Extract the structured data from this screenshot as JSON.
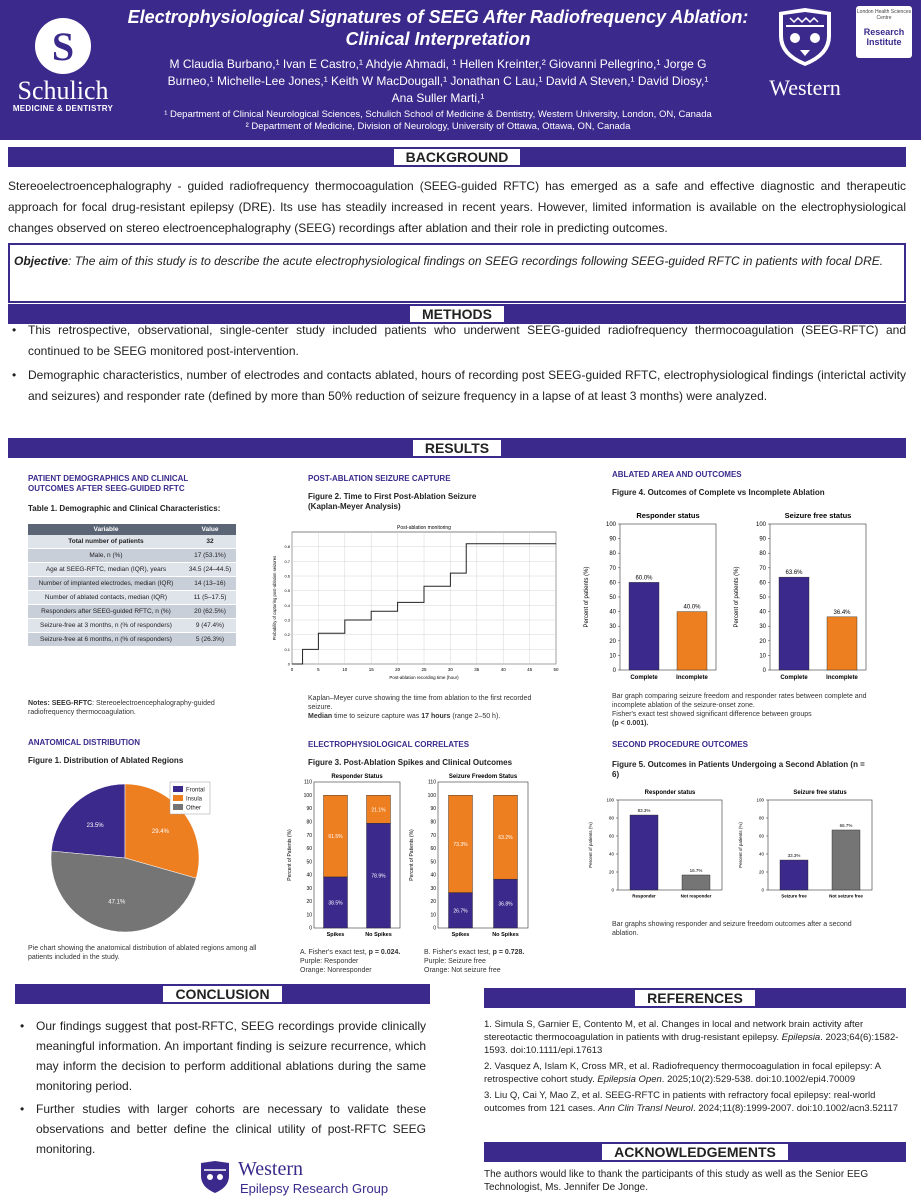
{
  "header": {
    "schulich_logo_letter": "S",
    "schulich_name": "Schulich",
    "schulich_sub": "MEDICINE & DENTISTRY",
    "title_line1": "Electrophysiological Signatures of SEEG After Radiofrequency Ablation:",
    "title_line2": "Clinical Interpretation",
    "authors_line1": "M Claudia Burbano,¹ Ivan E Castro,¹ Ahdyie Ahmadi, ¹ Hellen Kreinter,² Giovanni Pellegrino,¹ Jorge G",
    "authors_line2": "Burneo,¹ Michelle-Lee Jones,¹ Keith W MacDougall,¹ Jonathan C Lau,¹ David A Steven,¹ David Diosy,¹",
    "authors_line3": "Ana Suller Marti,¹",
    "affil1": "¹ Department of Clinical Neurological Sciences, Schulich School of Medicine & Dentistry, Western University, London, ON, Canada",
    "affil2": "² Department of Medicine, Division of Neurology, University of Ottawa, Ottawa, ON, Canada",
    "western_name": "Western",
    "ri_top": "London Health Sciences Centre",
    "ri_main": "Research Institute"
  },
  "background": {
    "heading": "BACKGROUND",
    "text": "Stereoelectroencephalography - guided radiofrequency thermocoagulation (SEEG-guided RFTC) has emerged as a safe and effective diagnostic and therapeutic approach for focal drug-resistant epilepsy (DRE). Its use has steadily increased in recent years. However, limited information is available on the electrophysiological changes observed on stereo electroencephalography (SEEG) recordings after ablation and their role in predicting outcomes.",
    "objective_label": "Objective",
    "objective_text": ": The aim of this study is to describe the acute electrophysiological findings on SEEG recordings following SEEG-guided RFTC in patients with focal DRE."
  },
  "methods": {
    "heading": "METHODS",
    "bullets": [
      "This retrospective, observational, single-center study included patients who underwent SEEG-guided radiofrequency thermocoagulation (SEEG-RFTC) and continued to be SEEG monitored post-intervention.",
      "Demographic characteristics, number of electrodes and contacts ablated, hours of recording post SEEG-guided RFTC, electrophysiological findings (interictal activity and seizures) and responder rate (defined by more than 50% reduction of seizure frequency in a lapse of at least 3 months) were analyzed."
    ]
  },
  "results": {
    "heading": "RESULTS",
    "col1_title": "PATIENT DEMOGRAPHICS AND CLINICAL OUTCOMES AFTER SEEG-GUIDED RFTC",
    "table_title": "Table 1. Demographic and Clinical Characteristics:",
    "table_headers": [
      "Variable",
      "Value"
    ],
    "table_rows": [
      [
        "Total number of patients",
        "32"
      ],
      [
        "Male, n (%)",
        "17 (53.1%)"
      ],
      [
        "Age at SEEG-RFTC, median (IQR), years",
        "34.5 (24–44.5)"
      ],
      [
        "Number of implanted electrodes, median (IQR)",
        "14 (13–16)"
      ],
      [
        "Number of ablated contacts, median (IQR)",
        "11 (5–17.5)"
      ],
      [
        "Responders after SEEG-guided RFTC, n (%)",
        "20 (62.5%)"
      ],
      [
        "Seizure-free at 3 months, n (% of responders)",
        "9 (47.4%)"
      ],
      [
        "Seizure-free at 6 months, n (% of responders)",
        "5 (26.3%)"
      ]
    ],
    "table_note_label": "Notes: SEEG-RFTC",
    "table_note": ": Stereoelectroencephalography-guided radiofrequency thermocoagulation.",
    "anat_title": "ANATOMICAL DISTRIBUTION",
    "fig1_title": "Figure 1. Distribution of Ablated Regions",
    "fig1_caption": "Pie chart showing the anatomical distribution of ablated regions among all patients included in the study.",
    "capture_title": "POST-ABLATION SEIZURE CAPTURE",
    "fig2_title": "Figure 2. Time to First Post-Ablation Seizure (Kaplan-Meyer Analysis)",
    "fig2_caption": "Kaplan–Meyer curve showing the time from ablation to the first recorded seizure.",
    "fig2_median_label": "Median",
    "fig2_median_a": " time to seizure capture was ",
    "fig2_median_val": "17 hours",
    "fig2_median_b": " (range 2–50 h).",
    "electro_title": "ELECTROPHYSIOLOGICAL CORRELATES",
    "fig3_title": "Figure 3. Post-Ablation Spikes and Clinical Outcomes",
    "fig3_note_a1": "A. Fisher's exact test, ",
    "fig3_note_a2": "p = 0.024.",
    "fig3_note_a3": "Purple: Responder",
    "fig3_note_a4": "Orange: Nonresponder",
    "fig3_note_b1": "B. Fisher's exact test, ",
    "fig3_note_b2": "p = 0.728.",
    "fig3_note_b3": "Purple: Seizure free",
    "fig3_note_b4": "Orange: Not seizure free",
    "ablated_title": "ABLATED AREA AND OUTCOMES",
    "fig4_title": "Figure 4. Outcomes of Complete vs Incomplete Ablation",
    "fig4_caption1": "Bar graph comparing seizure freedom and responder rates between complete and incomplete ablation of the seizure-onset zone.",
    "fig4_caption2": "Fisher's exact test showed significant difference between groups",
    "fig4_caption3": "(p < 0.001).",
    "second_title": "SECOND PROCEDURE OUTCOMES",
    "fig5_title": "Figure 5. Outcomes in Patients Undergoing a Second Ablation (n = 6)",
    "fig5_caption": "Bar graphs showing responder and seizure freedom outcomes after a second ablation."
  },
  "chart_data": [
    {
      "id": "fig1",
      "type": "pie",
      "title": "Figure 1. Distribution of Ablated Regions",
      "categories": [
        "Frontal",
        "Insula",
        "Other"
      ],
      "values": [
        23.5,
        29.4,
        47.1
      ],
      "labels": [
        "23.5%",
        "29.4%",
        "47.1%"
      ],
      "colors": [
        "#3b2a8c",
        "#ee7f20",
        "#757575"
      ],
      "legend": "top-right"
    },
    {
      "id": "fig2",
      "type": "line",
      "title": "Post-ablation monitoring",
      "xlabel": "Post-ablation recording time (hour)",
      "ylabel": "Probability of capturing post-ablation seizures",
      "x": [
        0,
        2,
        2,
        5,
        5,
        10,
        10,
        15,
        15,
        20,
        20,
        25,
        25,
        30,
        30,
        33,
        33,
        50
      ],
      "y": [
        0,
        0,
        0.1,
        0.1,
        0.21,
        0.21,
        0.3,
        0.3,
        0.36,
        0.36,
        0.42,
        0.42,
        0.53,
        0.53,
        0.62,
        0.62,
        0.82,
        0.82
      ],
      "xticks": [
        "0",
        "5",
        "10",
        "15",
        "20",
        "25",
        "30",
        "35",
        "40",
        "45",
        "50"
      ],
      "yticks": [
        "0",
        "0.1",
        "0.2",
        "0.3",
        "0.4",
        "0.5",
        "0.6",
        "0.7",
        "0.8"
      ],
      "xlim": [
        0,
        50
      ],
      "ylim": [
        0,
        0.9
      ]
    },
    {
      "id": "fig3a",
      "type": "bar",
      "stacked": true,
      "title": "Responder Status",
      "ylabel": "Percent of Patients (%)",
      "categories": [
        "Spikes",
        "No Spikes"
      ],
      "series": [
        {
          "name": "Responder",
          "values": [
            38.5,
            78.9
          ],
          "labels": [
            "38.5%",
            "78.9%"
          ],
          "color": "#3b2a8c"
        },
        {
          "name": "Nonresponder",
          "values": [
            61.5,
            21.1
          ],
          "labels": [
            "61.5%",
            "21.1%"
          ],
          "color": "#ee7f20"
        }
      ],
      "yticks": [
        "0",
        "10",
        "20",
        "30",
        "40",
        "50",
        "60",
        "70",
        "80",
        "90",
        "100",
        "110"
      ],
      "ylim": [
        0,
        110
      ]
    },
    {
      "id": "fig3b",
      "type": "bar",
      "stacked": true,
      "title": "Seizure Freedom Status",
      "ylabel": "Percent of Patients (%)",
      "categories": [
        "Spikes",
        "No Spikes"
      ],
      "series": [
        {
          "name": "Seizure free",
          "values": [
            26.7,
            36.8
          ],
          "labels": [
            "26.7%",
            "36.8%"
          ],
          "color": "#3b2a8c"
        },
        {
          "name": "Not seizure free",
          "values": [
            73.3,
            63.2
          ],
          "labels": [
            "73.3%",
            "63.2%"
          ],
          "color": "#ee7f20"
        }
      ],
      "yticks": [
        "0",
        "10",
        "20",
        "30",
        "40",
        "50",
        "60",
        "70",
        "80",
        "90",
        "100",
        "110"
      ],
      "ylim": [
        0,
        110
      ]
    },
    {
      "id": "fig4a",
      "type": "bar",
      "title": "Responder status",
      "ylabel": "Percent of patients (%)",
      "categories": [
        "Complete",
        "Incomplete"
      ],
      "values": [
        60.0,
        40.0
      ],
      "labels": [
        "60.0%",
        "40.0%"
      ],
      "colors": [
        "#3b2a8c",
        "#ee7f20"
      ],
      "yticks": [
        "0",
        "10",
        "20",
        "30",
        "40",
        "50",
        "60",
        "70",
        "80",
        "90",
        "100"
      ],
      "ylim": [
        0,
        100
      ]
    },
    {
      "id": "fig4b",
      "type": "bar",
      "title": "Seizure free status",
      "ylabel": "Percent of patients (%)",
      "categories": [
        "Complete",
        "Incomplete"
      ],
      "values": [
        63.6,
        36.4
      ],
      "labels": [
        "63.6%",
        "36.4%"
      ],
      "colors": [
        "#3b2a8c",
        "#ee7f20"
      ],
      "yticks": [
        "0",
        "10",
        "20",
        "30",
        "40",
        "50",
        "60",
        "70",
        "80",
        "90",
        "100"
      ],
      "ylim": [
        0,
        100
      ]
    },
    {
      "id": "fig5a",
      "type": "bar",
      "title": "Responder status",
      "ylabel": "Percent of patients (%)",
      "categories": [
        "Responder",
        "Not responder"
      ],
      "values": [
        83.3,
        16.7
      ],
      "labels": [
        "83.3%",
        "16.7%"
      ],
      "colors": [
        "#3b2a8c",
        "#757575"
      ],
      "yticks": [
        "0",
        "20",
        "40",
        "60",
        "80",
        "100"
      ],
      "ylim": [
        0,
        100
      ]
    },
    {
      "id": "fig5b",
      "type": "bar",
      "title": "Seizure free status",
      "ylabel": "Percent of patients (%)",
      "categories": [
        "Seizure free",
        "Not seizure free"
      ],
      "values": [
        33.3,
        66.7
      ],
      "labels": [
        "33.3%",
        "66.7%"
      ],
      "colors": [
        "#3b2a8c",
        "#757575"
      ],
      "yticks": [
        "0",
        "20",
        "40",
        "60",
        "80",
        "100"
      ],
      "ylim": [
        0,
        100
      ]
    }
  ],
  "conclusion": {
    "heading": "CONCLUSION",
    "bullets": [
      "Our findings suggest that post-RFTC, SEEG recordings provide clinically meaningful information. An important finding is seizure recurrence, which may inform the decision to perform additional ablations during the same monitoring period.",
      "Further studies with larger cohorts are necessary to validate these observations and better define the clinical utility of post-RFTC SEEG monitoring."
    ],
    "wep_name": "Western",
    "wep_sub": "Epilepsy Research Group"
  },
  "references": {
    "heading": "REFERENCES",
    "items": [
      {
        "a": "1. Simula S, Garnier E, Contento M, et al. Changes in local and network brain activity after stereotactic thermocoagulation in patients with drug-resistant epilepsy. ",
        "j": "Epilepsia",
        "b": ". 2023;64(6):1582-1593. doi:10.1111/epi.17613"
      },
      {
        "a": "2. Vasquez A, Islam K, Cross MR, et al. Radiofrequency thermocoagulation in focal epilepsy: A retrospective cohort study. ",
        "j": "Epilepsia Open",
        "b": ". 2025;10(2):529-538. doi:10.1002/epi4.70009"
      },
      {
        "a": "3. Liu Q, Cai Y, Mao Z, et al. SEEG-RFTC in patients with refractory focal epilepsy: real-world outcomes from 121 cases. ",
        "j": "Ann Clin Transl Neurol",
        "b": ". 2024;11(8):1999-2007. doi:10.1002/acn3.52117"
      }
    ]
  },
  "acknowledgements": {
    "heading": "ACKNOWLEDGEMENTS",
    "text": "The authors would like to thank the participants of this study as well as the Senior EEG Technologist, Ms. Jennifer De Jonge."
  }
}
